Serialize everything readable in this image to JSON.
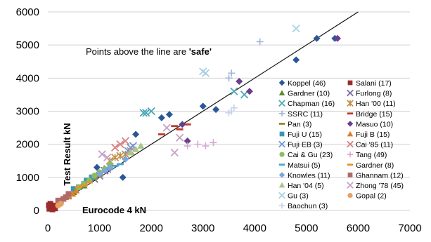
{
  "chart_data": {
    "type": "scatter",
    "title": "",
    "xlabel": "Eurocode 4  kN",
    "ylabel": "Test Result  kN",
    "xlim": [
      0,
      7000
    ],
    "ylim": [
      0,
      6000
    ],
    "x_ticks": [
      "0",
      "1000",
      "2000",
      "3000",
      "4000",
      "5000",
      "6000",
      "7000"
    ],
    "y_ticks": [
      "0",
      "1000",
      "2000",
      "3000",
      "4000",
      "5000",
      "6000"
    ],
    "grid": "horizontal",
    "legend_position": "right",
    "annotation": {
      "prefix": "Points above the line are ",
      "emphasis": "'safe'"
    },
    "reference_line": {
      "from": [
        0,
        0
      ],
      "to": [
        6000,
        6000
      ]
    },
    "series": [
      {
        "name": "Koppel (46)",
        "marker": "diamond",
        "color": "#2b5797",
        "x": [
          1700,
          1450,
          2200,
          2350,
          3000,
          4800,
          5200,
          5550,
          3250,
          700,
          950
        ],
        "y": [
          2300,
          1000,
          2800,
          2900,
          3150,
          4550,
          5200,
          5200,
          3050,
          800,
          1300
        ]
      },
      {
        "name": "Salani (17)",
        "marker": "square",
        "color": "#9b2c2c",
        "x": [
          30,
          60,
          90,
          120,
          50,
          80,
          20,
          140
        ],
        "y": [
          50,
          120,
          30,
          150,
          200,
          80,
          160,
          60
        ]
      },
      {
        "name": "Gardner (10)",
        "marker": "triangle",
        "color": "#5f8a2e",
        "x": [
          250,
          400,
          500,
          600,
          700
        ],
        "y": [
          300,
          450,
          550,
          700,
          750
        ]
      },
      {
        "name": "Furlong (8)",
        "marker": "x",
        "color": "#7f6aa8",
        "x": [
          900,
          1000,
          1100,
          1150
        ],
        "y": [
          950,
          1050,
          1200,
          1250
        ]
      },
      {
        "name": "Chapman (16)",
        "marker": "x",
        "color": "#4aa7b5",
        "x": [
          1850,
          1900,
          2000,
          3600,
          3800
        ],
        "y": [
          2950,
          2950,
          3000,
          3600,
          3500
        ]
      },
      {
        "name": "Han '00 (11)",
        "marker": "star",
        "color": "#c08a40",
        "x": [
          1200,
          1300,
          1400,
          1500
        ],
        "y": [
          1500,
          1600,
          1650,
          1700
        ]
      },
      {
        "name": "SSRC (11)",
        "marker": "plus",
        "color": "#9fb6d6",
        "x": [
          3500,
          4100,
          3550
        ],
        "y": [
          4000,
          5100,
          4150
        ]
      },
      {
        "name": "Bridge (15)",
        "marker": "dash",
        "color": "#c0392b",
        "x": [
          2200,
          2450,
          2700,
          2550
        ],
        "y": [
          2300,
          2550,
          2600,
          2450
        ]
      },
      {
        "name": "Pan (3)",
        "marker": "dash",
        "color": "#8a8a2a",
        "x": [
          800,
          900,
          1000
        ],
        "y": [
          850,
          950,
          1050
        ]
      },
      {
        "name": "Masuo (10)",
        "marker": "diamond",
        "color": "#6a3d8f",
        "x": [
          2600,
          2700,
          3700,
          3900,
          5600
        ],
        "y": [
          2600,
          2100,
          3900,
          3600,
          5200
        ]
      },
      {
        "name": "Fuji U (15)",
        "marker": "square",
        "color": "#3a97b3",
        "x": [
          500,
          600,
          700,
          750,
          850
        ],
        "y": [
          650,
          700,
          800,
          900,
          1000
        ]
      },
      {
        "name": "Fuji B (15)",
        "marker": "triangle",
        "color": "#d9822b",
        "x": [
          300,
          400,
          480,
          550
        ],
        "y": [
          350,
          420,
          500,
          600
        ]
      },
      {
        "name": "Fuji EB (3)",
        "marker": "x",
        "color": "#6c9bd2",
        "x": [
          1550,
          1600,
          1650
        ],
        "y": [
          1800,
          1900,
          1950
        ]
      },
      {
        "name": "Cai '85 (11)",
        "marker": "x",
        "color": "#d98080",
        "x": [
          1300,
          1400,
          1500,
          1600
        ],
        "y": [
          1900,
          2000,
          2100,
          1800
        ]
      },
      {
        "name": "Cai & Gu (23)",
        "marker": "circle",
        "color": "#8fbc5a",
        "x": [
          600,
          700,
          800,
          900,
          1000,
          1100,
          1200
        ],
        "y": [
          700,
          800,
          900,
          1050,
          1150,
          1250,
          1400
        ]
      },
      {
        "name": "Tang (49)",
        "marker": "plus",
        "color": "#d8a6d6",
        "x": [
          2700,
          2900,
          3050,
          3200
        ],
        "y": [
          1950,
          2000,
          1950,
          2050
        ]
      },
      {
        "name": "Matsui (5)",
        "marker": "dash",
        "color": "#4aa7c9",
        "x": [
          1200,
          1300,
          1400
        ],
        "y": [
          1250,
          1350,
          1400
        ]
      },
      {
        "name": "Gardner (8)",
        "marker": "dash",
        "color": "#e8912d",
        "x": [
          600,
          700,
          800
        ],
        "y": [
          700,
          750,
          850
        ]
      },
      {
        "name": "Knowles (11)",
        "marker": "diamond",
        "color": "#7ea6d8",
        "x": [
          1000,
          1100,
          1200,
          1500
        ],
        "y": [
          1100,
          1200,
          1300,
          1550
        ]
      },
      {
        "name": "Ghannam (12)",
        "marker": "square",
        "color": "#b06a6a",
        "x": [
          200,
          300,
          350,
          400
        ],
        "y": [
          300,
          350,
          400,
          500
        ]
      },
      {
        "name": "Han '04 (5)",
        "marker": "triangle",
        "color": "#a6c78a",
        "x": [
          1600,
          1700,
          1800
        ],
        "y": [
          1750,
          1850,
          1950
        ]
      },
      {
        "name": "Zhong '78 (45)",
        "marker": "x",
        "color": "#c9a0c6",
        "x": [
          1050,
          1150,
          2300,
          2450,
          2550
        ],
        "y": [
          1700,
          1600,
          2500,
          1750,
          2200
        ]
      },
      {
        "name": "Gu (3)",
        "marker": "x",
        "color": "#a8d0e0",
        "x": [
          3000,
          3050,
          4800
        ],
        "y": [
          4200,
          4150,
          5500
        ]
      },
      {
        "name": "Gopal (2)",
        "marker": "circle",
        "color": "#e8a062",
        "x": [
          200,
          250
        ],
        "y": [
          150,
          200
        ]
      },
      {
        "name": "Baochun (3)",
        "marker": "plus",
        "color": "#c6d4ec",
        "x": [
          3550,
          3600,
          3500
        ],
        "y": [
          3000,
          3100,
          2950
        ]
      }
    ]
  }
}
